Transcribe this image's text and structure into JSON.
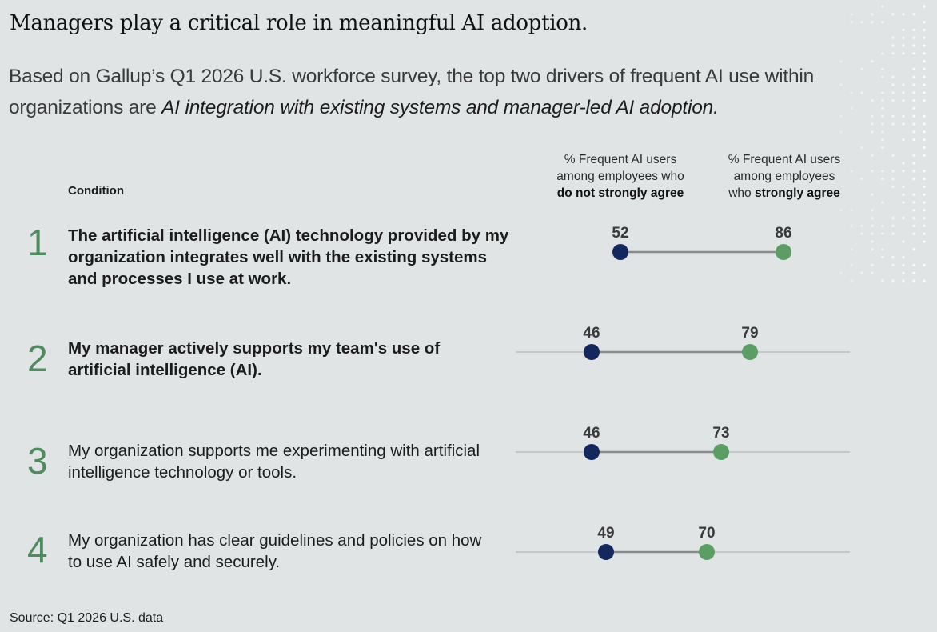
{
  "header": {
    "title": "Managers play a critical role in meaningful AI adoption.",
    "subtitle_plain": "Based on Gallup’s Q1 2026 U.S. workforce survey, the top two drivers of frequent AI use within organizations are ",
    "subtitle_emph": "AI integration with existing systems and manager-led AI adoption."
  },
  "table": {
    "condition_header": "Condition",
    "col_a": {
      "line1": "% Frequent AI users",
      "line2": "among employees who",
      "line3": "do not strongly agree"
    },
    "col_b": {
      "line1": "% Frequent AI users",
      "line2": "among employees",
      "line3_plain": "who ",
      "line3_bold": "strongly agree"
    }
  },
  "rows": [
    {
      "num": "1",
      "text": "The artificial intelligence (AI) technology provided by my organization integrates well with the existing systems and processes I use at work.",
      "a_label": "52",
      "b_label": "86"
    },
    {
      "num": "2",
      "text": "My manager actively supports my team's use of artificial intelligence (AI).",
      "a_label": "46",
      "b_label": "79"
    },
    {
      "num": "3",
      "text": "My organization supports me experimenting with artificial intelligence technology or tools.",
      "a_label": "46",
      "b_label": "73"
    },
    {
      "num": "4",
      "text": "My organization has clear guidelines and policies on how to use AI safely and securely.",
      "a_label": "49",
      "b_label": "70"
    }
  ],
  "source": "Source: Q1 2026 U.S. data",
  "colors": {
    "not_agree": "#14285e",
    "agree": "#5a9e63",
    "accent": "#4e8c5f",
    "line": "#8a8a8a"
  },
  "chart_data": {
    "type": "dumbbell",
    "categories": [
      "The artificial intelligence (AI) technology provided by my organization integrates well with the existing systems and processes I use at work.",
      "My manager actively supports my team's use of artificial intelligence (AI).",
      "My organization supports me experimenting with artificial intelligence technology or tools.",
      "My organization has clear guidelines and policies on how to use AI safely and securely."
    ],
    "series": [
      {
        "name": "% Frequent AI users among employees who do not strongly agree",
        "values": [
          52,
          46,
          46,
          49
        ]
      },
      {
        "name": "% Frequent AI users among employees who strongly agree",
        "values": [
          86,
          79,
          73,
          70
        ]
      }
    ],
    "xlim": [
      30,
      101
    ],
    "title": "Managers play a critical role in meaningful AI adoption.",
    "xlabel": "",
    "ylabel": ""
  }
}
